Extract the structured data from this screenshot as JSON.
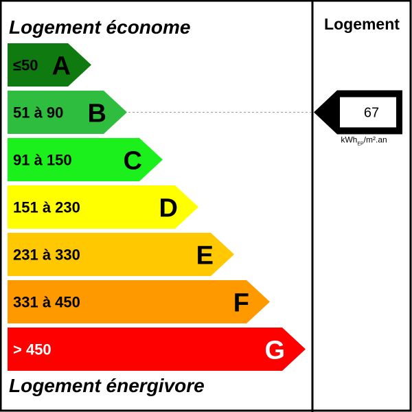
{
  "header": {
    "top_label": "Logement économe",
    "bottom_label": "Logement énergivore"
  },
  "column": {
    "title": "Logement"
  },
  "classes": [
    {
      "range": "≤50",
      "letter": "A",
      "color": "#0f7a0f",
      "text_color": "#000000",
      "letter_color": "#000000"
    },
    {
      "range": "51 à 90",
      "letter": "B",
      "color": "#2fbd3f",
      "text_color": "#000000",
      "letter_color": "#000000"
    },
    {
      "range": "91 à 150",
      "letter": "C",
      "color": "#1cf01c",
      "text_color": "#000000",
      "letter_color": "#000000"
    },
    {
      "range": "151 à 230",
      "letter": "D",
      "color": "#ffff00",
      "text_color": "#000000",
      "letter_color": "#000000"
    },
    {
      "range": "231 à 330",
      "letter": "E",
      "color": "#ffc800",
      "text_color": "#000000",
      "letter_color": "#000000"
    },
    {
      "range": "331 à 450",
      "letter": "F",
      "color": "#ff9900",
      "text_color": "#000000",
      "letter_color": "#000000"
    },
    {
      "range": "> 450",
      "letter": "G",
      "color": "#ff0000",
      "text_color": "#ffffff",
      "letter_color": "#ffffff"
    }
  ],
  "indicator": {
    "value": "67",
    "class_index": 1,
    "unit_main": "kWh",
    "unit_sub": "EP",
    "unit_tail": "/m².an"
  }
}
